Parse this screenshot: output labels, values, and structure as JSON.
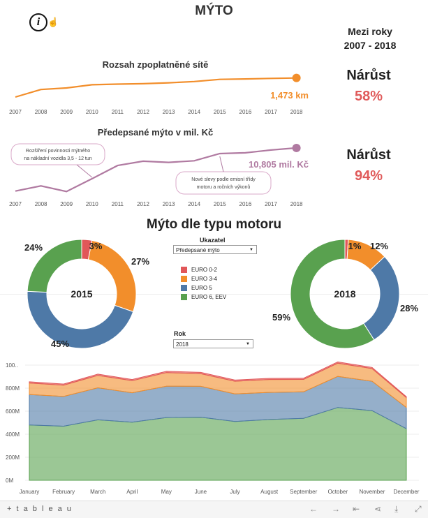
{
  "header": {
    "title": "MÝTO",
    "info_icon": "i"
  },
  "period": {
    "line1": "Mezi roky",
    "line2": "2007 - 2018"
  },
  "network_chart": {
    "title": "Rozsah zpoplatněné sítě",
    "value_label": "1,473 km",
    "color": "#f28e2b"
  },
  "toll_chart": {
    "title": "Předepsané mýto v mil. Kč",
    "value_label": "10,805 mil. Kč",
    "color": "#b07aa1",
    "annotation_1_line1": "Rozšíření povinnosti mýtného",
    "annotation_1_line2": "na nákladní vozidla 3,5 - 12 tun",
    "annotation_2_line1": "Nové slevy podle emisní třídy",
    "annotation_2_line2": "motoru a ročních výkonů"
  },
  "growth": [
    {
      "label": "Nárůst",
      "value": "58%"
    },
    {
      "label": "Nárůst",
      "value": "94%"
    }
  ],
  "engine_section": {
    "title": "Mýto dle typu motoru"
  },
  "controls": {
    "ukazatel_label": "Ukazatel",
    "ukazatel_value": "Předepsané mýto",
    "rok_label": "Rok",
    "rok_value": "2018"
  },
  "legend": [
    {
      "label": "EURO 0-2",
      "color": "#e15759"
    },
    {
      "label": "EURO 3-4",
      "color": "#f28e2b"
    },
    {
      "label": "EURO 5",
      "color": "#4e79a7"
    },
    {
      "label": "EURO 6, EEV",
      "color": "#59a14f"
    }
  ],
  "footer": {
    "logo": "+ t a b l e a u"
  },
  "chart_data": [
    {
      "type": "line",
      "title": "Rozsah zpoplatněné sítě",
      "x": [
        "2007",
        "2008",
        "2009",
        "2010",
        "2011",
        "2012",
        "2013",
        "2014",
        "2015",
        "2016",
        "2017",
        "2018"
      ],
      "series": [
        {
          "values": [
            1030,
            1205,
            1240,
            1315,
            1330,
            1340,
            1360,
            1390,
            1440,
            1450,
            1462,
            1473
          ]
        }
      ]
    },
    {
      "type": "line",
      "title": "Předepsané mýto v mil. Kč",
      "x": [
        "2007",
        "2008",
        "2009",
        "2010",
        "2011",
        "2012",
        "2013",
        "2014",
        "2015",
        "2016",
        "2017",
        "2018"
      ],
      "series": [
        {
          "values": [
            5400,
            6050,
            5350,
            6950,
            8600,
            9150,
            9000,
            9200,
            10100,
            10200,
            10550,
            10805
          ]
        }
      ]
    },
    {
      "type": "pie",
      "title": "2015",
      "categories": [
        "EURO 0-2",
        "EURO 3-4",
        "EURO 5",
        "EURO 6, EEV"
      ],
      "values": [
        3,
        27,
        45,
        24
      ],
      "labels": [
        "3%",
        "27%",
        "45%",
        "24%"
      ]
    },
    {
      "type": "pie",
      "title": "2018",
      "categories": [
        "EURO 0-2",
        "EURO 3-4",
        "EURO 5",
        "EURO 6, EEV"
      ],
      "values": [
        1,
        12,
        28,
        59
      ],
      "labels": [
        "1%",
        "12%",
        "28%",
        "59%"
      ]
    },
    {
      "type": "area",
      "categories": [
        "January",
        "February",
        "March",
        "April",
        "May",
        "June",
        "July",
        "August",
        "September",
        "October",
        "November",
        "December"
      ],
      "ylim": [
        0,
        1000
      ],
      "yticks": [
        "0M",
        "200M",
        "400M",
        "600M",
        "800M",
        "100.."
      ],
      "series": [
        {
          "name": "EURO 6, EEV",
          "values": [
            480,
            470,
            525,
            505,
            545,
            548,
            510,
            528,
            538,
            632,
            605,
            448
          ]
        },
        {
          "name": "EURO 5",
          "values": [
            265,
            258,
            278,
            255,
            272,
            268,
            240,
            235,
            230,
            270,
            255,
            185
          ]
        },
        {
          "name": "EURO 3-4",
          "values": [
            100,
            98,
            108,
            105,
            118,
            110,
            110,
            112,
            108,
            115,
            110,
            85
          ]
        },
        {
          "name": "EURO 0-2",
          "values": [
            10,
            10,
            11,
            10,
            11,
            11,
            10,
            10,
            10,
            11,
            10,
            8
          ]
        }
      ]
    }
  ]
}
